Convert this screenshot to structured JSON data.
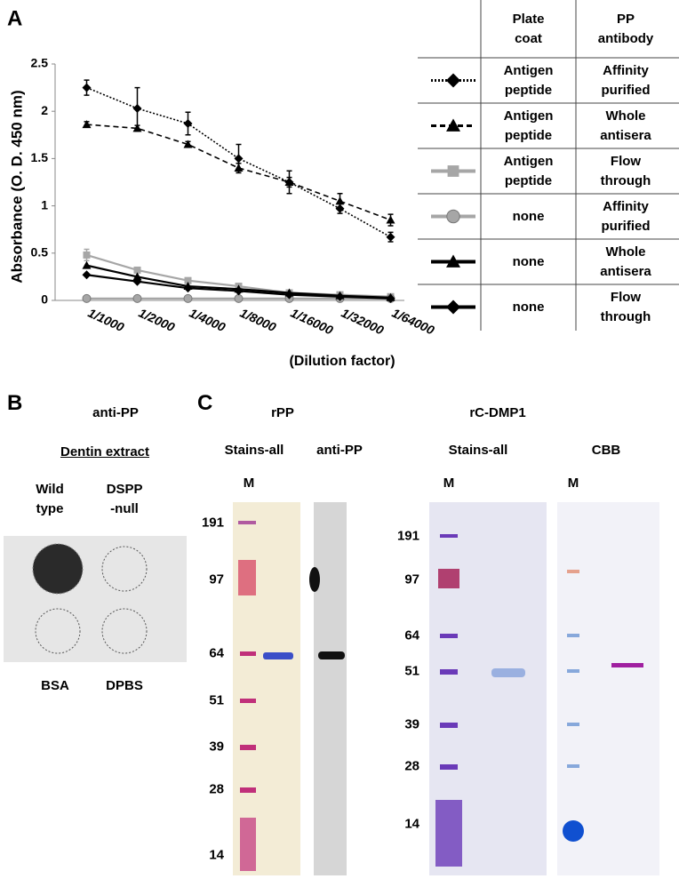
{
  "chart_data": {
    "type": "line",
    "panel_label": "A",
    "y_label": "Absorbance (O. D. 450 nm)",
    "x_label": "(Dilution factor)",
    "categories": [
      "1/1000",
      "1/2000",
      "1/4000",
      "1/8000",
      "1/16000",
      "1/32000",
      "1/64000"
    ],
    "ylim": [
      0,
      2.5
    ],
    "yticks": [
      0,
      0.5,
      1,
      1.5,
      2,
      2.5
    ],
    "legend_headers": [
      "Plate coat",
      "PP antibody"
    ],
    "series": [
      {
        "plate_coat": "Antigen peptide",
        "antibody": "Affinity purified",
        "color": "#000000",
        "line": "dotted",
        "marker": "diamond",
        "values": [
          2.25,
          2.03,
          1.87,
          1.5,
          1.25,
          0.97,
          0.67
        ],
        "errors": [
          0.08,
          0.22,
          0.12,
          0.15,
          0.12,
          0.05,
          0.05
        ]
      },
      {
        "plate_coat": "Antigen peptide",
        "antibody": "Whole antisera",
        "color": "#000000",
        "line": "dashed",
        "marker": "triangle",
        "values": [
          1.86,
          1.82,
          1.65,
          1.4,
          1.25,
          1.05,
          0.85
        ],
        "errors": [
          0.03,
          0.03,
          0.03,
          0.05,
          0.05,
          0.08,
          0.06
        ]
      },
      {
        "plate_coat": "Antigen peptide",
        "antibody": "Flow through",
        "color": "#a6a6a6",
        "line": "solid",
        "marker": "square",
        "values": [
          0.48,
          0.32,
          0.21,
          0.15,
          0.08,
          0.06,
          0.04
        ],
        "errors": [
          0.06,
          0.02,
          0.02,
          0.02,
          0.01,
          0.01,
          0.01
        ]
      },
      {
        "plate_coat": "none",
        "antibody": "Affinity purified",
        "color": "#a6a6a6",
        "line": "solid",
        "marker": "circle",
        "values": [
          0.02,
          0.02,
          0.02,
          0.02,
          0.02,
          0.02,
          0.02
        ]
      },
      {
        "plate_coat": "none",
        "antibody": "Whole antisera",
        "color": "#000000",
        "line": "solid",
        "marker": "triangle",
        "values": [
          0.37,
          0.25,
          0.15,
          0.12,
          0.08,
          0.05,
          0.03
        ]
      },
      {
        "plate_coat": "none",
        "antibody": "Flow through",
        "color": "#000000",
        "line": "solid",
        "marker": "diamond",
        "values": [
          0.27,
          0.2,
          0.13,
          0.1,
          0.06,
          0.04,
          0.02
        ]
      }
    ]
  },
  "panel_b": {
    "label": "B",
    "title": "anti-PP",
    "subtitle": "Dentin extract",
    "top_labels": [
      "Wild type",
      "DSPP -null"
    ],
    "bottom_labels": [
      "BSA",
      "DPBS"
    ]
  },
  "panel_c": {
    "label": "C",
    "rpp": {
      "title": "rPP",
      "lanes": [
        "Stains-all",
        "anti-PP"
      ],
      "marker_lane": "M",
      "markers": [
        191,
        97,
        64,
        51,
        39,
        28,
        14
      ]
    },
    "rcdmp1": {
      "title": "rC-DMP1",
      "lanes": [
        "Stains-all",
        "CBB"
      ],
      "marker_lanes": [
        "M",
        "M"
      ],
      "markers": [
        191,
        97,
        64,
        51,
        39,
        28,
        14
      ]
    }
  }
}
